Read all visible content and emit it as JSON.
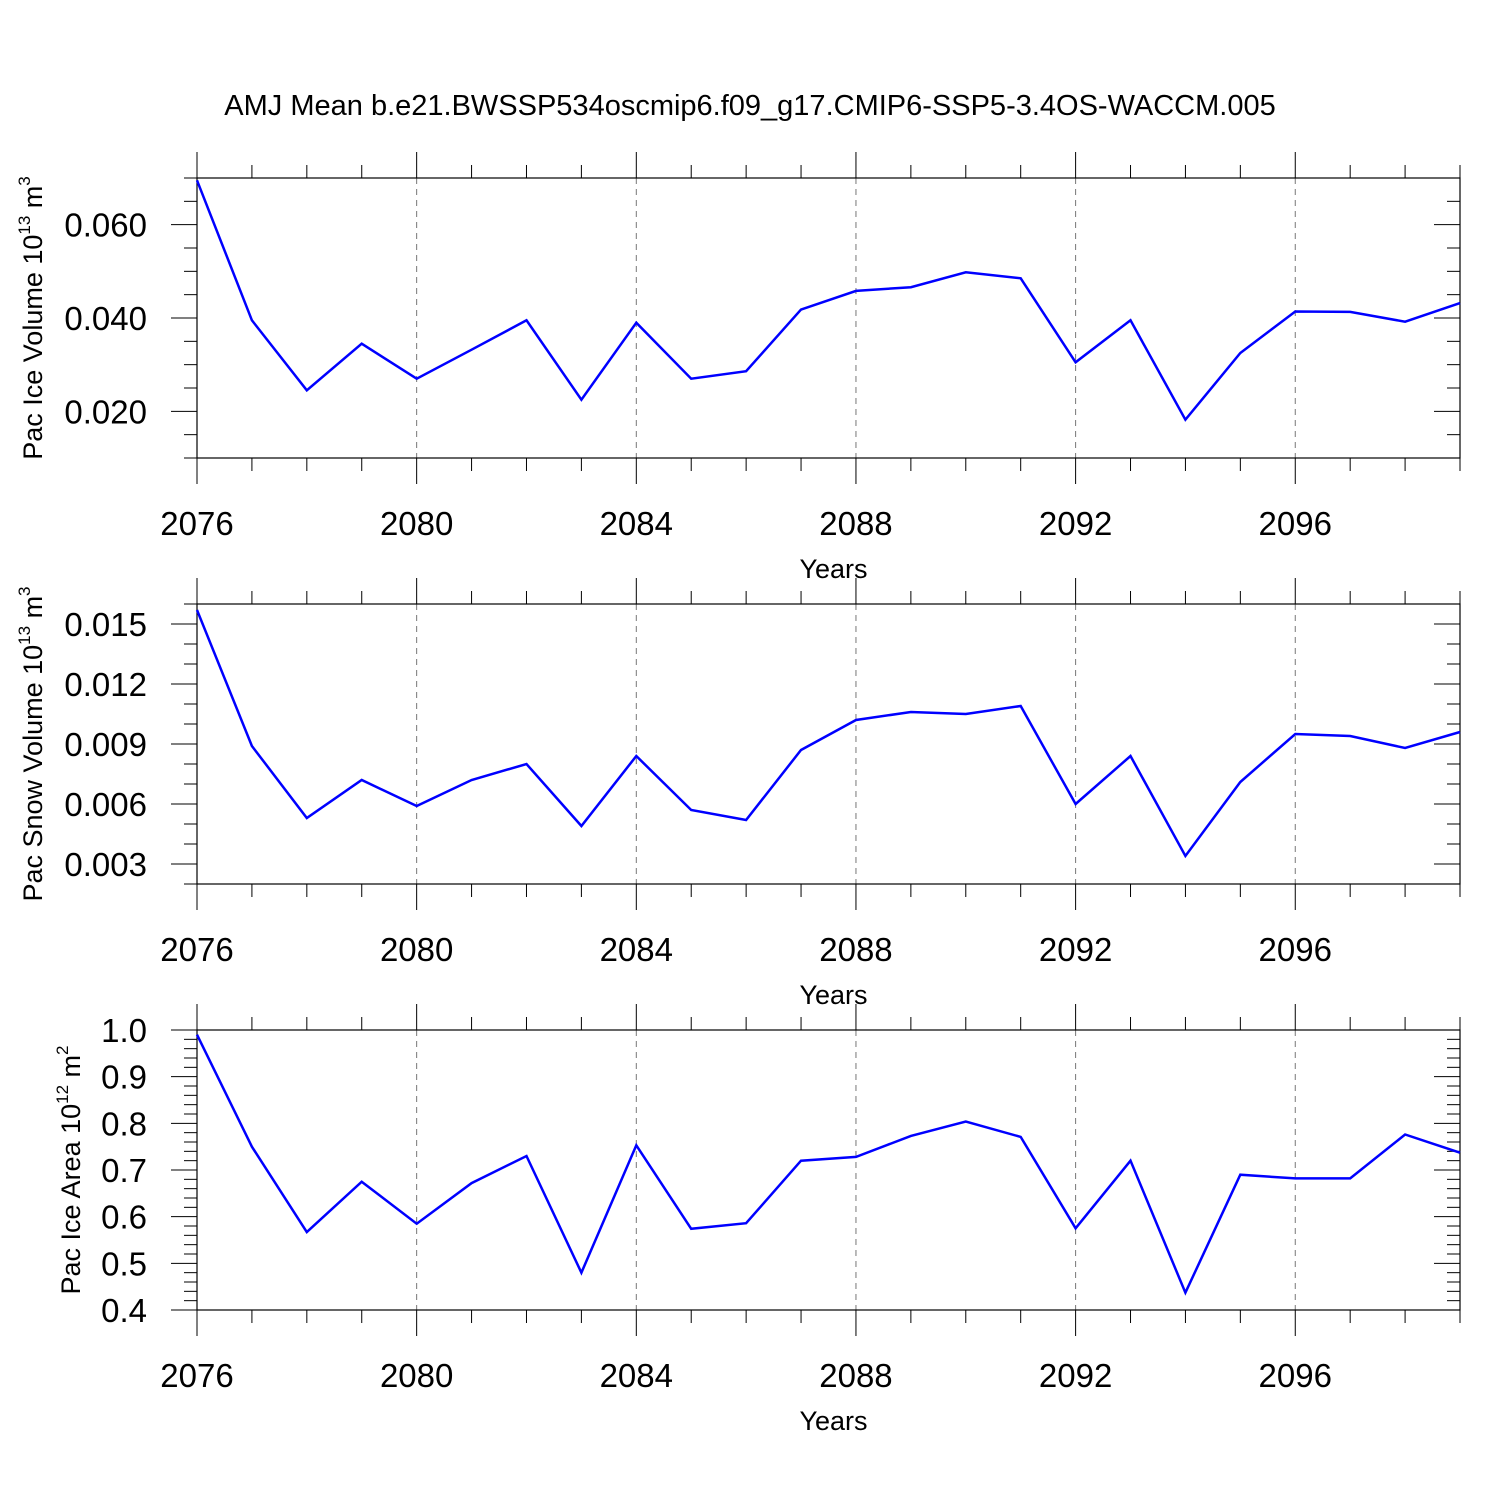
{
  "title": "AMJ Mean b.e21.BWSSP534oscmip6.f09_g17.CMIP6-SSP5-3.4OS-WACCM.005",
  "line_color": "#0000ff",
  "chart_data": [
    {
      "type": "line",
      "xlabel": "Years",
      "ylabel": {
        "main": "Pac Ice Volume 10",
        "exp": "13",
        "unit": " m",
        "unit_exp": "3"
      },
      "x": [
        2076,
        2077,
        2078,
        2079,
        2080,
        2081,
        2082,
        2083,
        2084,
        2085,
        2086,
        2087,
        2088,
        2089,
        2090,
        2091,
        2092,
        2093,
        2094,
        2095,
        2096,
        2097,
        2098,
        2099
      ],
      "y": [
        0.0695,
        0.0395,
        0.0245,
        0.0345,
        0.027,
        0.0332,
        0.0395,
        0.0225,
        0.039,
        0.027,
        0.0286,
        0.0418,
        0.0458,
        0.0466,
        0.0498,
        0.0485,
        0.0305,
        0.0395,
        0.0182,
        0.0325,
        0.0414,
        0.0413,
        0.0392,
        0.0432
      ],
      "xlim": [
        2076,
        2099
      ],
      "ylim": [
        0.01,
        0.07
      ],
      "xticks": [
        "2076",
        "2080",
        "2084",
        "2088",
        "2092",
        "2096"
      ],
      "yticks": [
        "0.020",
        "0.040",
        "0.060"
      ],
      "ytick_values": [
        0.02,
        0.04,
        0.06
      ],
      "yminor_step": 0.005,
      "grid": "vertical dashed at major x ticks"
    },
    {
      "type": "line",
      "xlabel": "Years",
      "ylabel": {
        "main": "Pac Snow Volume 10",
        "exp": "13",
        "unit": " m",
        "unit_exp": "3"
      },
      "x": [
        2076,
        2077,
        2078,
        2079,
        2080,
        2081,
        2082,
        2083,
        2084,
        2085,
        2086,
        2087,
        2088,
        2089,
        2090,
        2091,
        2092,
        2093,
        2094,
        2095,
        2096,
        2097,
        2098,
        2099
      ],
      "y": [
        0.0157,
        0.0089,
        0.0053,
        0.0072,
        0.0059,
        0.0072,
        0.008,
        0.0049,
        0.0084,
        0.0057,
        0.0052,
        0.0087,
        0.0102,
        0.0106,
        0.0105,
        0.0109,
        0.006,
        0.0084,
        0.0034,
        0.0071,
        0.0095,
        0.0094,
        0.0088,
        0.0096
      ],
      "xlim": [
        2076,
        2099
      ],
      "ylim": [
        0.002,
        0.016
      ],
      "xticks": [
        "2076",
        "2080",
        "2084",
        "2088",
        "2092",
        "2096"
      ],
      "yticks": [
        "0.003",
        "0.006",
        "0.009",
        "0.012",
        "0.015"
      ],
      "ytick_values": [
        0.003,
        0.006,
        0.009,
        0.012,
        0.015
      ],
      "yminor_step": 0.001,
      "grid": "vertical dashed at major x ticks"
    },
    {
      "type": "line",
      "xlabel": "Years",
      "ylabel": {
        "main": "Pac Ice Area 10",
        "exp": "12",
        "unit": " m",
        "unit_exp": "2"
      },
      "x": [
        2076,
        2077,
        2078,
        2079,
        2080,
        2081,
        2082,
        2083,
        2084,
        2085,
        2086,
        2087,
        2088,
        2089,
        2090,
        2091,
        2092,
        2093,
        2094,
        2095,
        2096,
        2097,
        2098,
        2099
      ],
      "y": [
        0.99,
        0.75,
        0.567,
        0.675,
        0.585,
        0.672,
        0.73,
        0.48,
        0.753,
        0.574,
        0.586,
        0.72,
        0.728,
        0.773,
        0.804,
        0.771,
        0.575,
        0.72,
        0.437,
        0.69,
        0.682,
        0.682,
        0.776,
        0.737
      ],
      "xlim": [
        2076,
        2099
      ],
      "ylim": [
        0.4,
        1.0
      ],
      "xticks": [
        "2076",
        "2080",
        "2084",
        "2088",
        "2092",
        "2096"
      ],
      "yticks": [
        "0.4",
        "0.5",
        "0.6",
        "0.7",
        "0.8",
        "0.9",
        "1.0"
      ],
      "ytick_values": [
        0.4,
        0.5,
        0.6,
        0.7,
        0.8,
        0.9,
        1.0
      ],
      "yminor_step": 0.02,
      "grid": "vertical dashed at major x ticks"
    }
  ]
}
